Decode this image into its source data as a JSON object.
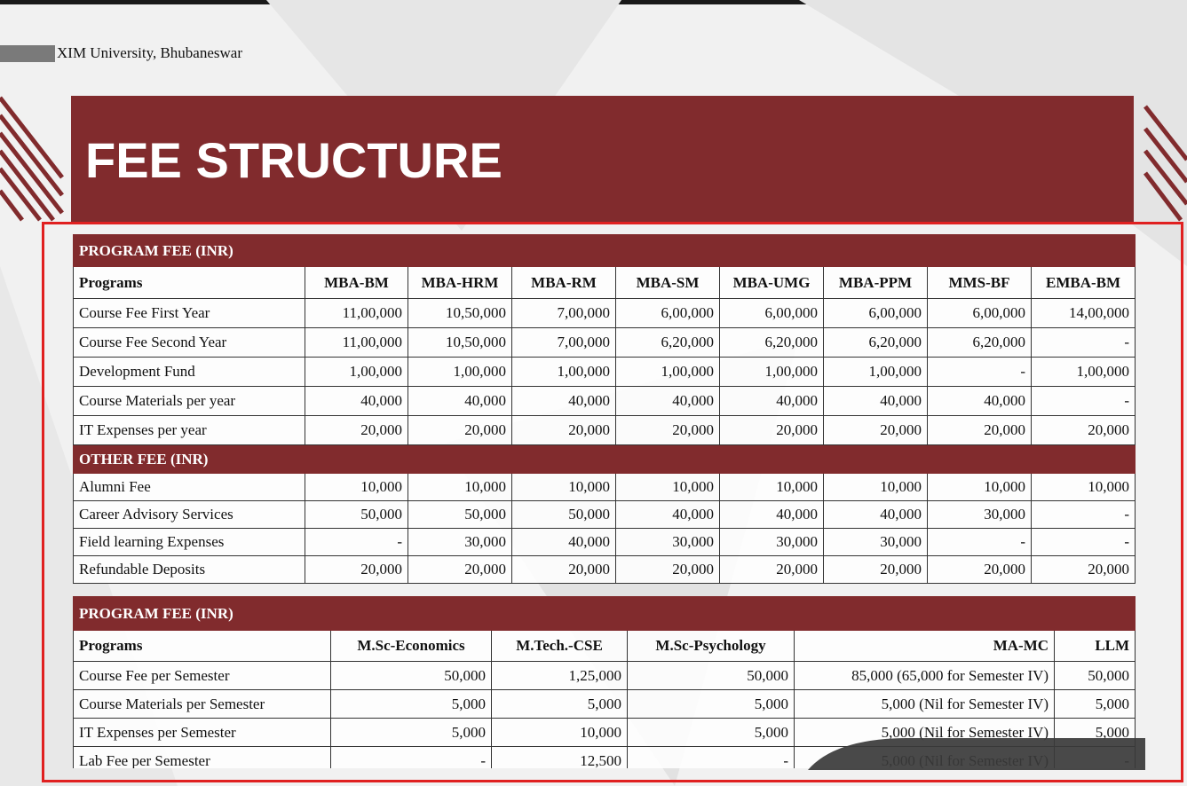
{
  "header": {
    "institution": "XIM University, Bhubaneswar",
    "title": "FEE STRUCTURE"
  },
  "table1": {
    "title": "PROGRAM FEE (INR)",
    "columns": [
      "Programs",
      "MBA-BM",
      "MBA-HRM",
      "MBA-RM",
      "MBA-SM",
      "MBA-UMG",
      "MBA-PPM",
      "MMS-BF",
      "EMBA-BM"
    ],
    "rows": [
      [
        "Course Fee First Year",
        "11,00,000",
        "10,50,000",
        "7,00,000",
        "6,00,000",
        "6,00,000",
        "6,00,000",
        "6,00,000",
        "14,00,000"
      ],
      [
        "Course Fee Second Year",
        "11,00,000",
        "10,50,000",
        "7,00,000",
        "6,20,000",
        "6,20,000",
        "6,20,000",
        "6,20,000",
        "-"
      ],
      [
        "Development Fund",
        "1,00,000",
        "1,00,000",
        "1,00,000",
        "1,00,000",
        "1,00,000",
        "1,00,000",
        "-",
        "1,00,000"
      ],
      [
        "Course Materials per year",
        "40,000",
        "40,000",
        "40,000",
        "40,000",
        "40,000",
        "40,000",
        "40,000",
        "-"
      ],
      [
        "IT Expenses per year",
        "20,000",
        "20,000",
        "20,000",
        "20,000",
        "20,000",
        "20,000",
        "20,000",
        "20,000"
      ]
    ],
    "other_title": "OTHER FEE (INR)",
    "other_rows": [
      [
        "Alumni Fee",
        "10,000",
        "10,000",
        "10,000",
        "10,000",
        "10,000",
        "10,000",
        "10,000",
        "10,000"
      ],
      [
        "Career Advisory Services",
        "50,000",
        "50,000",
        "50,000",
        "40,000",
        "40,000",
        "40,000",
        "30,000",
        "-"
      ],
      [
        "Field learning Expenses",
        "-",
        "30,000",
        "40,000",
        "30,000",
        "30,000",
        "30,000",
        "-",
        "-"
      ],
      [
        "Refundable Deposits",
        "20,000",
        "20,000",
        "20,000",
        "20,000",
        "20,000",
        "20,000",
        "20,000",
        "20,000"
      ]
    ]
  },
  "table2": {
    "title": "PROGRAM FEE (INR)",
    "columns": [
      "Programs",
      "M.Sc-Economics",
      "M.Tech.-CSE",
      "M.Sc-Psychology",
      "MA-MC",
      "LLM"
    ],
    "rows": [
      [
        "Course Fee per Semester",
        "50,000",
        "1,25,000",
        "50,000",
        "85,000 (65,000 for Semester IV)",
        "50,000"
      ],
      [
        "Course Materials per Semester",
        "5,000",
        "5,000",
        "5,000",
        "5,000 (Nil for Semester IV)",
        "5,000"
      ],
      [
        "IT Expenses per Semester",
        "5,000",
        "10,000",
        "5,000",
        "5,000 (Nil for Semester IV)",
        "5,000"
      ],
      [
        "Lab Fee per Semester",
        "-",
        "12,500",
        "-",
        "5,000 (Nil for Semester IV)",
        "-"
      ]
    ]
  }
}
